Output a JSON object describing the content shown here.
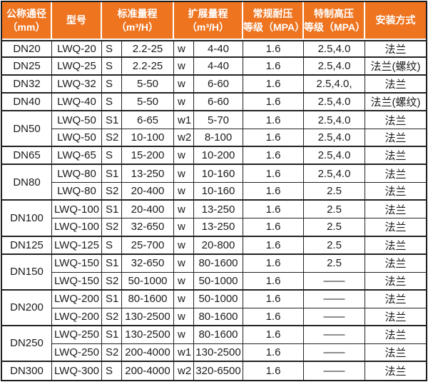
{
  "colors": {
    "header_bg": "#ee7420",
    "header_text": "#ffffff",
    "grid_line": "#222222",
    "body_text": "#1c1c1c"
  },
  "table": {
    "header": {
      "diameter": "公称通径\n（mm）",
      "model": "型号",
      "std_range": "标准量程\n（m³/H）",
      "ext_range": "扩展量程\n（m³/H）",
      "pressure": "常规耐压\n等级（MPA）",
      "high_pressure": "特制高压\n等级（MPA）",
      "install": "安装方式"
    },
    "rows": [
      {
        "diameter": "DN20",
        "rowspan": 1,
        "model": "LWQ-20",
        "std_code": "S",
        "std_range": "2.2-25",
        "ext_code": "w",
        "ext_range": "4-40",
        "pressure": "1.6",
        "high_pressure": "2.5,4.0",
        "install": "法兰",
        "group_end": true
      },
      {
        "diameter": "DN25",
        "rowspan": 1,
        "model": "LWQ-25",
        "std_code": "S",
        "std_range": "2.2-25",
        "ext_code": "w",
        "ext_range": "4-40",
        "pressure": "1.6",
        "high_pressure": "2.5,4.0",
        "install": "法兰(螺纹)",
        "group_end": true
      },
      {
        "diameter": "DN32",
        "rowspan": 1,
        "model": "LWQ-32",
        "std_code": "S",
        "std_range": "5-50",
        "ext_code": "w",
        "ext_range": "6-60",
        "pressure": "1.6",
        "high_pressure": "2.5,4.0,",
        "install": "法兰",
        "group_end": true
      },
      {
        "diameter": "DN40",
        "rowspan": 1,
        "model": "LWQ-40",
        "std_code": "S",
        "std_range": "5-50",
        "ext_code": "w",
        "ext_range": "6-60",
        "pressure": "1.6",
        "high_pressure": "2.5,4.0",
        "install": "法兰(螺纹)",
        "group_end": true
      },
      {
        "diameter": "DN50",
        "rowspan": 2,
        "model": "LWQ-50",
        "std_code": "S1",
        "std_range": "6-65",
        "ext_code": "w1",
        "ext_range": "5-70",
        "pressure": "1.6",
        "high_pressure": "2.5,4.0",
        "install": "法兰",
        "group_end": false
      },
      {
        "diameter": null,
        "rowspan": 0,
        "model": "LWQ-50",
        "std_code": "S2",
        "std_range": "10-100",
        "ext_code": "w2",
        "ext_range": "8-100",
        "pressure": "1.6",
        "high_pressure": "2.5,4.0",
        "install": "法兰",
        "group_end": true
      },
      {
        "diameter": "DN65",
        "rowspan": 1,
        "model": "LWQ-65",
        "std_code": "S",
        "std_range": "15-200",
        "ext_code": "w",
        "ext_range": "10-200",
        "pressure": "1.6",
        "high_pressure": "2.5,4.0",
        "install": "法兰",
        "group_end": true
      },
      {
        "diameter": "DN80",
        "rowspan": 2,
        "model": "LWQ-80",
        "std_code": "S1",
        "std_range": "13-250",
        "ext_code": "w",
        "ext_range": "10-160",
        "pressure": "1.6",
        "high_pressure": "2.5,4.0",
        "install": "法兰",
        "group_end": false
      },
      {
        "diameter": null,
        "rowspan": 0,
        "model": "LWQ-80",
        "std_code": "S2",
        "std_range": "20-400",
        "ext_code": "w",
        "ext_range": "10-160",
        "pressure": "1.6",
        "high_pressure": "2.5",
        "install": "法兰",
        "group_end": true
      },
      {
        "diameter": "DN100",
        "rowspan": 2,
        "model": "LWQ-100",
        "std_code": "S1",
        "std_range": "20-400",
        "ext_code": "w",
        "ext_range": "13-250",
        "pressure": "1.6",
        "high_pressure": "2.5",
        "install": "法兰",
        "group_end": false
      },
      {
        "diameter": null,
        "rowspan": 0,
        "model": "LWQ-100",
        "std_code": "S2",
        "std_range": "32-650",
        "ext_code": "w",
        "ext_range": "13-250",
        "pressure": "1.6",
        "high_pressure": "2.5",
        "install": "法兰",
        "group_end": true
      },
      {
        "diameter": "DN125",
        "rowspan": 1,
        "model": "LWQ-125",
        "std_code": "S",
        "std_range": "25-700",
        "ext_code": "w",
        "ext_range": "20-800",
        "pressure": "1.6",
        "high_pressure": "2.5",
        "install": "法兰",
        "group_end": true
      },
      {
        "diameter": "DN150",
        "rowspan": 2,
        "model": "LWQ-150",
        "std_code": "S1",
        "std_range": "32-650",
        "ext_code": "w",
        "ext_range": "80-1600",
        "pressure": "1.6",
        "high_pressure": "2.5",
        "install": "法兰",
        "group_end": false
      },
      {
        "diameter": null,
        "rowspan": 0,
        "model": "LWQ-150",
        "std_code": "S2",
        "std_range": "50-1000",
        "ext_code": "w",
        "ext_range": "50-1000",
        "pressure": "1.6",
        "high_pressure": "——",
        "install": "法兰",
        "group_end": true
      },
      {
        "diameter": "DN200",
        "rowspan": 2,
        "model": "LWQ-200",
        "std_code": "S1",
        "std_range": "80-1600",
        "ext_code": "w",
        "ext_range": "50-1000",
        "pressure": "1.6",
        "high_pressure": "——",
        "install": "法兰",
        "group_end": false
      },
      {
        "diameter": null,
        "rowspan": 0,
        "model": "LWQ-200",
        "std_code": "S2",
        "std_range": "130-2500",
        "ext_code": "w",
        "ext_range": "80-1600",
        "pressure": "1.6",
        "high_pressure": "——",
        "install": "法兰",
        "group_end": true
      },
      {
        "diameter": "DN250",
        "rowspan": 2,
        "model": "LWQ-250",
        "std_code": "S1",
        "std_range": "130-2500",
        "ext_code": "w",
        "ext_range": "80-1600",
        "pressure": "1.6",
        "high_pressure": "——",
        "install": "法兰",
        "group_end": false
      },
      {
        "diameter": null,
        "rowspan": 0,
        "model": "LWQ-250",
        "std_code": "S2",
        "std_range": "200-4000",
        "ext_code": "w1",
        "ext_range": "130-2500",
        "pressure": "1.6",
        "high_pressure": "——",
        "install": "法兰",
        "group_end": true
      },
      {
        "diameter": "DN300",
        "rowspan": 1,
        "model": "LWQ-300",
        "std_code": "S",
        "std_range": "200-4000",
        "ext_code": "w2",
        "ext_range": "320-6500",
        "pressure": "1.6",
        "high_pressure": "——",
        "install": "法兰",
        "group_end": true
      }
    ]
  }
}
